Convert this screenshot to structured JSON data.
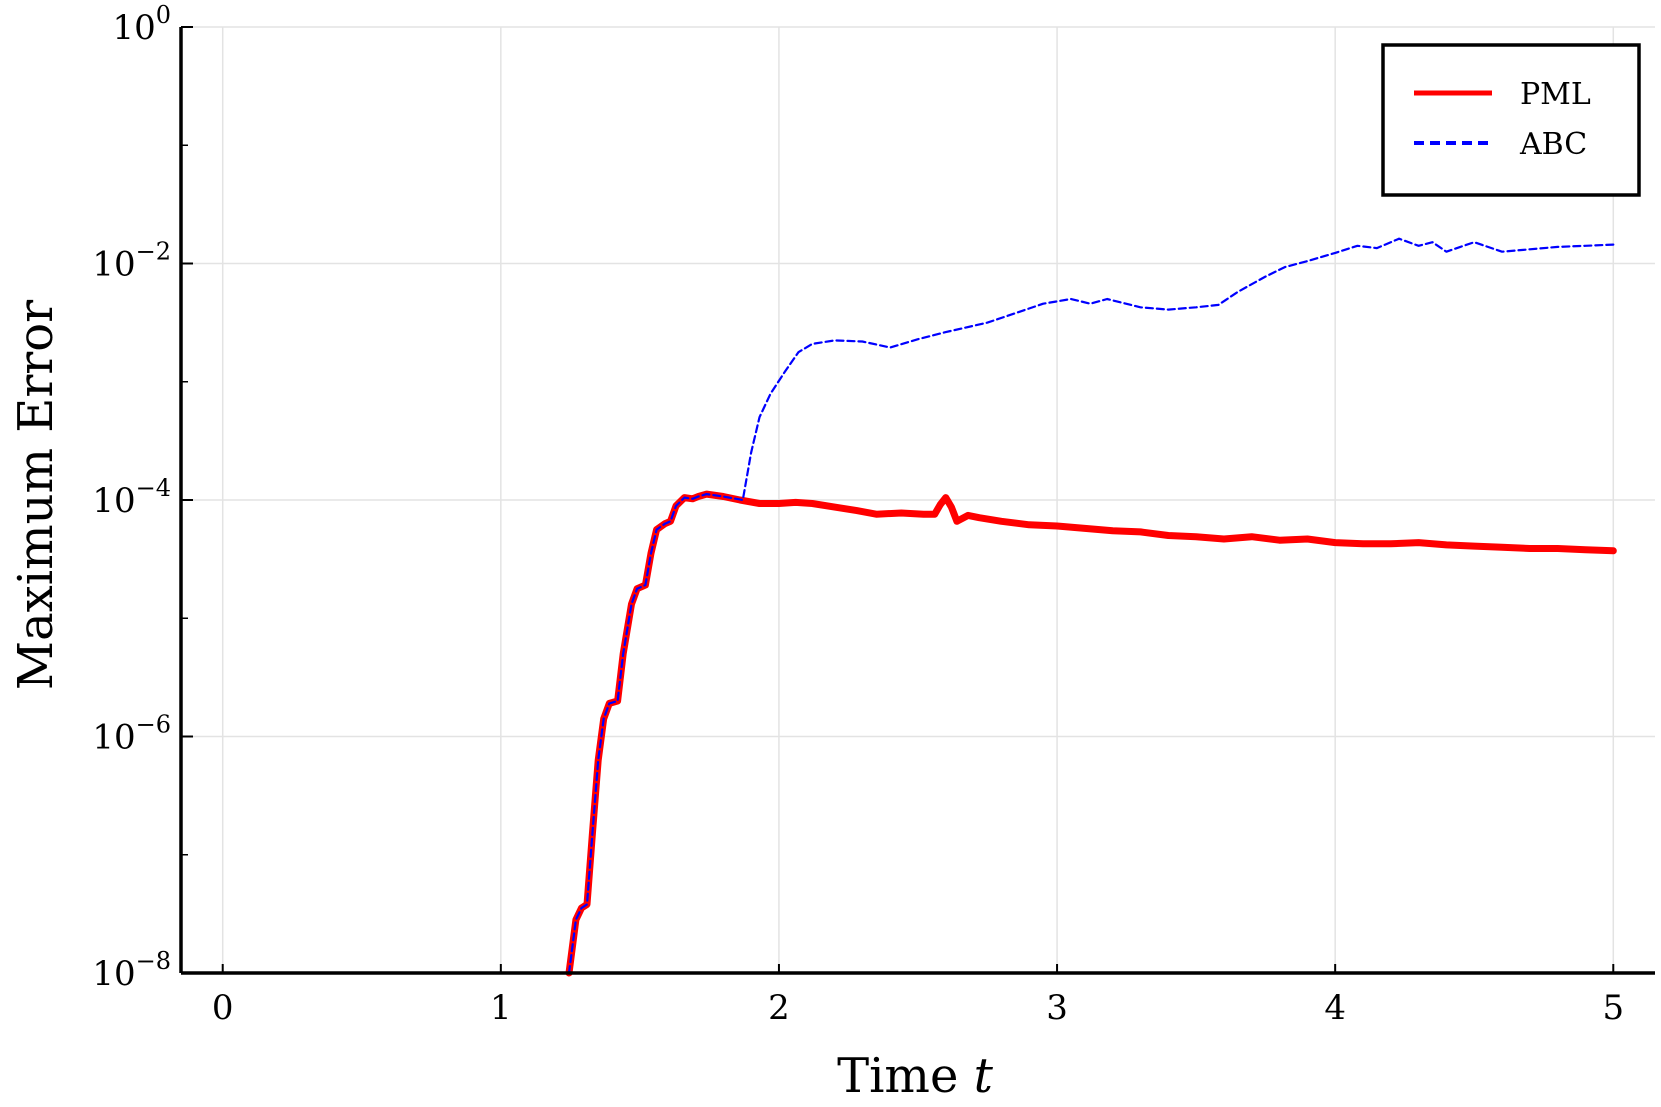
{
  "chart_data": {
    "type": "line",
    "xlabel": "Time",
    "xlabel_var": "t",
    "ylabel": "Maximum Error",
    "xlim": [
      -0.15,
      5.15
    ],
    "ylim_log10": [
      -8,
      0
    ],
    "yscale": "log",
    "x_ticks": [
      "0",
      "1",
      "2",
      "3",
      "4",
      "5"
    ],
    "y_ticks": [
      {
        "base": "10",
        "exp": "0",
        "value": 0
      },
      {
        "base": "10",
        "exp": "−2",
        "value": -2
      },
      {
        "base": "10",
        "exp": "−4",
        "value": -4
      },
      {
        "base": "10",
        "exp": "−6",
        "value": -6
      },
      {
        "base": "10",
        "exp": "−8",
        "value": -8
      }
    ],
    "grid": true,
    "legend_position": "top-right",
    "series": [
      {
        "name": "PML",
        "color": "#ff0000",
        "style": "solid",
        "points": [
          [
            1.245,
            -8.0
          ],
          [
            1.27,
            -7.55
          ],
          [
            1.29,
            -7.45
          ],
          [
            1.31,
            -7.42
          ],
          [
            1.33,
            -6.8
          ],
          [
            1.35,
            -6.2
          ],
          [
            1.37,
            -5.85
          ],
          [
            1.39,
            -5.72
          ],
          [
            1.42,
            -5.7
          ],
          [
            1.44,
            -5.3
          ],
          [
            1.47,
            -4.88
          ],
          [
            1.49,
            -4.75
          ],
          [
            1.52,
            -4.72
          ],
          [
            1.54,
            -4.45
          ],
          [
            1.56,
            -4.25
          ],
          [
            1.59,
            -4.2
          ],
          [
            1.61,
            -4.18
          ],
          [
            1.63,
            -4.05
          ],
          [
            1.66,
            -3.98
          ],
          [
            1.69,
            -3.99
          ],
          [
            1.71,
            -3.97
          ],
          [
            1.74,
            -3.95
          ],
          [
            1.8,
            -3.97
          ],
          [
            1.86,
            -4.0
          ],
          [
            1.93,
            -4.03
          ],
          [
            2.0,
            -4.03
          ],
          [
            2.06,
            -4.02
          ],
          [
            2.12,
            -4.03
          ],
          [
            2.2,
            -4.06
          ],
          [
            2.28,
            -4.09
          ],
          [
            2.35,
            -4.12
          ],
          [
            2.44,
            -4.11
          ],
          [
            2.52,
            -4.12
          ],
          [
            2.56,
            -4.12
          ],
          [
            2.58,
            -4.04
          ],
          [
            2.6,
            -3.98
          ],
          [
            2.62,
            -4.06
          ],
          [
            2.64,
            -4.18
          ],
          [
            2.68,
            -4.13
          ],
          [
            2.72,
            -4.15
          ],
          [
            2.8,
            -4.18
          ],
          [
            2.9,
            -4.21
          ],
          [
            3.0,
            -4.22
          ],
          [
            3.1,
            -4.24
          ],
          [
            3.2,
            -4.26
          ],
          [
            3.3,
            -4.27
          ],
          [
            3.4,
            -4.3
          ],
          [
            3.5,
            -4.31
          ],
          [
            3.6,
            -4.33
          ],
          [
            3.7,
            -4.31
          ],
          [
            3.8,
            -4.34
          ],
          [
            3.9,
            -4.33
          ],
          [
            4.0,
            -4.36
          ],
          [
            4.1,
            -4.37
          ],
          [
            4.2,
            -4.37
          ],
          [
            4.3,
            -4.36
          ],
          [
            4.4,
            -4.38
          ],
          [
            4.5,
            -4.39
          ],
          [
            4.6,
            -4.4
          ],
          [
            4.7,
            -4.41
          ],
          [
            4.8,
            -4.41
          ],
          [
            4.9,
            -4.42
          ],
          [
            5.0,
            -4.43
          ]
        ]
      },
      {
        "name": "ABC",
        "color": "#0000ff",
        "style": "dashed",
        "points": [
          [
            1.245,
            -8.0
          ],
          [
            1.27,
            -7.55
          ],
          [
            1.29,
            -7.45
          ],
          [
            1.31,
            -7.42
          ],
          [
            1.33,
            -6.8
          ],
          [
            1.35,
            -6.2
          ],
          [
            1.37,
            -5.85
          ],
          [
            1.39,
            -5.72
          ],
          [
            1.42,
            -5.7
          ],
          [
            1.44,
            -5.3
          ],
          [
            1.47,
            -4.88
          ],
          [
            1.49,
            -4.75
          ],
          [
            1.52,
            -4.72
          ],
          [
            1.54,
            -4.45
          ],
          [
            1.56,
            -4.25
          ],
          [
            1.59,
            -4.2
          ],
          [
            1.61,
            -4.18
          ],
          [
            1.63,
            -4.05
          ],
          [
            1.66,
            -3.98
          ],
          [
            1.69,
            -3.99
          ],
          [
            1.71,
            -3.97
          ],
          [
            1.74,
            -3.95
          ],
          [
            1.8,
            -3.97
          ],
          [
            1.87,
            -4.0
          ],
          [
            1.9,
            -3.6
          ],
          [
            1.93,
            -3.3
          ],
          [
            1.97,
            -3.1
          ],
          [
            2.02,
            -2.92
          ],
          [
            2.07,
            -2.75
          ],
          [
            2.12,
            -2.68
          ],
          [
            2.2,
            -2.65
          ],
          [
            2.3,
            -2.66
          ],
          [
            2.4,
            -2.71
          ],
          [
            2.5,
            -2.64
          ],
          [
            2.6,
            -2.58
          ],
          [
            2.75,
            -2.5
          ],
          [
            2.85,
            -2.42
          ],
          [
            2.95,
            -2.34
          ],
          [
            3.05,
            -2.3
          ],
          [
            3.12,
            -2.34
          ],
          [
            3.18,
            -2.3
          ],
          [
            3.3,
            -2.37
          ],
          [
            3.4,
            -2.39
          ],
          [
            3.5,
            -2.37
          ],
          [
            3.58,
            -2.35
          ],
          [
            3.65,
            -2.24
          ],
          [
            3.75,
            -2.11
          ],
          [
            3.82,
            -2.03
          ],
          [
            3.9,
            -1.98
          ],
          [
            4.0,
            -1.91
          ],
          [
            4.08,
            -1.85
          ],
          [
            4.15,
            -1.87
          ],
          [
            4.23,
            -1.79
          ],
          [
            4.3,
            -1.85
          ],
          [
            4.35,
            -1.82
          ],
          [
            4.4,
            -1.9
          ],
          [
            4.45,
            -1.86
          ],
          [
            4.5,
            -1.82
          ],
          [
            4.6,
            -1.9
          ],
          [
            4.7,
            -1.88
          ],
          [
            4.8,
            -1.86
          ],
          [
            4.9,
            -1.85
          ],
          [
            5.0,
            -1.84
          ]
        ]
      }
    ]
  }
}
